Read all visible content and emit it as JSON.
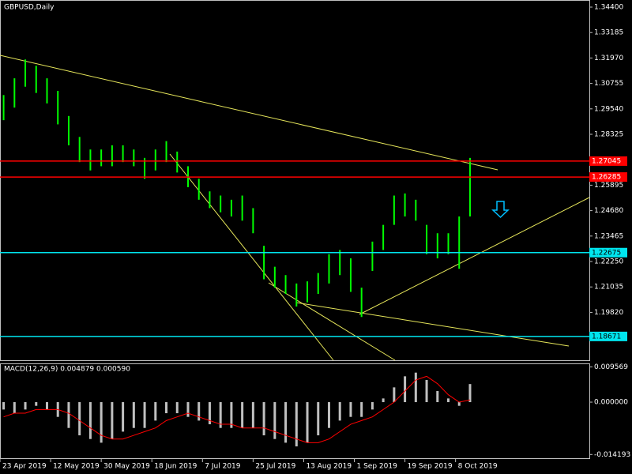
{
  "chart_data": [
    {
      "type": "price-bars",
      "title": "GBPUSD,Daily",
      "color": "#00ff00",
      "x": [
        1,
        4,
        7,
        10,
        13,
        16,
        19,
        22,
        25,
        28,
        31,
        34,
        37,
        40,
        43,
        46,
        49,
        52,
        55,
        58,
        61,
        64,
        67,
        70,
        73,
        76,
        79,
        82,
        85,
        88,
        91,
        94,
        97,
        100,
        103,
        106,
        109,
        112,
        115,
        118,
        121,
        124,
        127,
        130
      ],
      "low": [
        1.29,
        1.296,
        1.306,
        1.303,
        1.298,
        1.288,
        1.278,
        1.27,
        1.266,
        1.268,
        1.268,
        1.27,
        1.268,
        1.262,
        1.266,
        1.27,
        1.265,
        1.258,
        1.252,
        1.248,
        1.246,
        1.244,
        1.242,
        1.236,
        1.214,
        1.21,
        1.207,
        1.201,
        1.203,
        1.207,
        1.212,
        1.216,
        1.208,
        1.196,
        1.218,
        1.228,
        1.24,
        1.244,
        1.242,
        1.226,
        1.224,
        1.226,
        1.219,
        1.244
      ],
      "high": [
        1.302,
        1.31,
        1.319,
        1.316,
        1.31,
        1.304,
        1.292,
        1.282,
        1.276,
        1.276,
        1.278,
        1.278,
        1.276,
        1.272,
        1.276,
        1.28,
        1.275,
        1.268,
        1.262,
        1.256,
        1.254,
        1.252,
        1.254,
        1.248,
        1.23,
        1.22,
        1.216,
        1.212,
        1.213,
        1.217,
        1.226,
        1.228,
        1.224,
        1.21,
        1.232,
        1.24,
        1.254,
        1.255,
        1.252,
        1.24,
        1.236,
        1.236,
        1.244,
        1.272
      ],
      "levels": [
        {
          "value": 1.27045,
          "color": "#ff0000"
        },
        {
          "value": 1.26285,
          "color": "#ff0000"
        },
        {
          "value": 1.22675,
          "color": "#00e5ee"
        },
        {
          "value": 1.18671,
          "color": "#00e5ee"
        }
      ],
      "xlim": [
        0,
        163
      ],
      "ylim": [
        1.17534,
        1.3474
      ],
      "xticks": [
        {
          "value": 0,
          "label": "23 Apr 2019"
        },
        {
          "value": 14,
          "label": "12 May 2019"
        },
        {
          "value": 28,
          "label": "30 May 2019"
        },
        {
          "value": 42,
          "label": "18 Jun 2019"
        },
        {
          "value": 56,
          "label": "7 Jul 2019"
        },
        {
          "value": 70,
          "label": "25 Jul 2019"
        },
        {
          "value": 84,
          "label": "13 Aug 2019"
        },
        {
          "value": 98,
          "label": "1 Sep 2019"
        },
        {
          "value": 112,
          "label": "19 Sep 2019"
        },
        {
          "value": 126,
          "label": "8 Oct 2019"
        }
      ],
      "yticks": [
        {
          "value": 1.344,
          "label": "1.34400"
        },
        1.33185,
        {
          "value": 1.3197,
          "label": "1.31970"
        },
        1.30755,
        {
          "value": 1.2954,
          "label": "1.29540"
        },
        1.28325,
        1.25895,
        {
          "value": 1.2468,
          "label": "1.24680"
        },
        1.23465,
        {
          "value": 1.2225,
          "label": "1.22250"
        },
        1.21035,
        {
          "value": 1.1982,
          "label": "1.19820"
        }
      ]
    },
    {
      "type": "macd",
      "title": "MACD(12,26,9) 0.004879 0.000590",
      "hist_color": "#c0c0c0",
      "signal_color": "#ff0000",
      "values": [
        -0.002,
        -0.003,
        -0.002,
        -0.001,
        -0.002,
        -0.004,
        -0.007,
        -0.009,
        -0.01,
        -0.011,
        -0.01,
        -0.008,
        -0.007,
        -0.007,
        -0.005,
        -0.003,
        -0.003,
        -0.004,
        -0.005,
        -0.006,
        -0.007,
        -0.007,
        -0.007,
        -0.007,
        -0.009,
        -0.01,
        -0.011,
        -0.012,
        -0.011,
        -0.009,
        -0.007,
        -0.005,
        -0.004,
        -0.004,
        -0.002,
        0.001,
        0.004,
        0.007,
        0.008,
        0.006,
        0.003,
        0.001,
        -0.001,
        0.0049
      ],
      "signal": [
        -0.004,
        -0.003,
        -0.003,
        -0.002,
        -0.002,
        -0.002,
        -0.003,
        -0.005,
        -0.007,
        -0.009,
        -0.01,
        -0.01,
        -0.009,
        -0.008,
        -0.007,
        -0.005,
        -0.004,
        -0.003,
        -0.004,
        -0.005,
        -0.006,
        -0.006,
        -0.007,
        -0.007,
        -0.007,
        -0.008,
        -0.009,
        -0.01,
        -0.011,
        -0.011,
        -0.01,
        -0.008,
        -0.006,
        -0.005,
        -0.004,
        -0.002,
        0.0,
        0.003,
        0.006,
        0.007,
        0.005,
        0.002,
        0.0,
        0.0006
      ],
      "ylim": [
        -0.0152,
        0.0105
      ],
      "yticks": [
        0.009569,
        {
          "value": 0,
          "label": "0.000000"
        },
        -0.014193
      ]
    }
  ]
}
